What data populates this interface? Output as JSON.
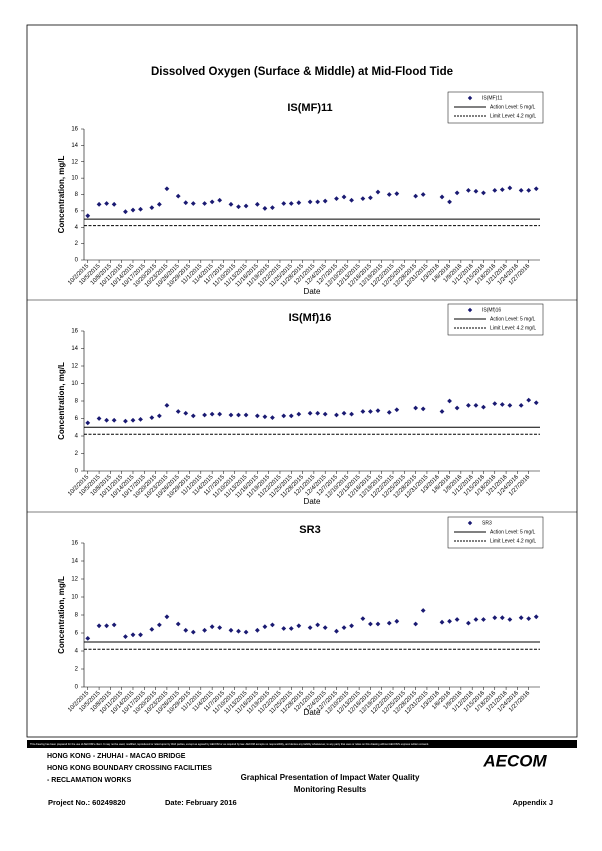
{
  "title": "Dissolved Oxygen (Surface & Middle) at Mid-Flood Tide",
  "chart_data": [
    {
      "type": "scatter",
      "title": "IS(MF)11",
      "xlabel": "Date",
      "ylabel": "Concentration, mg/L",
      "ylim": [
        0,
        16
      ],
      "yticks": [
        0,
        2,
        4,
        6,
        8,
        10,
        12,
        14,
        16
      ],
      "xlim": [
        "10/1/2015",
        "1/30/2016"
      ],
      "xticks": [
        "10/2/2015",
        "10/5/2015",
        "10/8/2015",
        "10/11/2015",
        "10/14/2015",
        "10/17/2015",
        "10/20/2015",
        "10/23/2015",
        "10/26/2015",
        "10/29/2015",
        "11/1/2015",
        "11/4/2015",
        "11/7/2015",
        "11/10/2015",
        "11/13/2015",
        "11/16/2015",
        "11/19/2015",
        "11/22/2015",
        "11/25/2015",
        "11/28/2015",
        "12/1/2015",
        "12/4/2015",
        "12/7/2015",
        "12/10/2015",
        "12/13/2015",
        "12/16/2015",
        "12/19/2015",
        "12/22/2015",
        "12/25/2015",
        "12/28/2015",
        "12/31/2015",
        "1/3/2016",
        "1/6/2016",
        "1/9/2016",
        "1/12/2016",
        "1/15/2016",
        "1/18/2016",
        "1/21/2016",
        "1/24/2016",
        "1/27/2016"
      ],
      "reference_lines": [
        {
          "name": "Action Level: 5 mg/L",
          "value": 5,
          "dashed": false,
          "color": "#000000"
        },
        {
          "name": "Limit Level: 4.2 mg/L",
          "value": 4.2,
          "dashed": true,
          "color": "#000000"
        }
      ],
      "series": [
        {
          "name": "IS(MF)11",
          "color": "#1a1a72",
          "x": [
            "10/2/2015",
            "10/5/2015",
            "10/7/2015",
            "10/9/2015",
            "10/12/2015",
            "10/14/2015",
            "10/16/2015",
            "10/19/2015",
            "10/21/2015",
            "10/23/2015",
            "10/26/2015",
            "10/28/2015",
            "10/30/2015",
            "11/2/2015",
            "11/4/2015",
            "11/6/2015",
            "11/9/2015",
            "11/11/2015",
            "11/13/2015",
            "11/16/2015",
            "11/18/2015",
            "11/20/2015",
            "11/23/2015",
            "11/25/2015",
            "11/27/2015",
            "11/30/2015",
            "12/2/2015",
            "12/4/2015",
            "12/7/2015",
            "12/9/2015",
            "12/11/2015",
            "12/14/2015",
            "12/16/2015",
            "12/18/2015",
            "12/21/2015",
            "12/23/2015",
            "12/28/2015",
            "12/30/2015",
            "1/4/2016",
            "1/6/2016",
            "1/8/2016",
            "1/11/2016",
            "1/13/2016",
            "1/15/2016",
            "1/18/2016",
            "1/20/2016",
            "1/22/2016",
            "1/25/2016",
            "1/27/2016",
            "1/29/2016"
          ],
          "values": [
            5.4,
            6.8,
            6.9,
            6.8,
            5.9,
            6.1,
            6.2,
            6.4,
            6.8,
            8.7,
            7.8,
            7.0,
            6.9,
            6.9,
            7.1,
            7.3,
            6.8,
            6.5,
            6.6,
            6.8,
            6.3,
            6.4,
            6.9,
            6.9,
            7.0,
            7.1,
            7.1,
            7.2,
            7.5,
            7.7,
            7.3,
            7.5,
            7.6,
            8.3,
            8.0,
            8.1,
            7.8,
            8.0,
            7.7,
            7.1,
            8.2,
            8.5,
            8.4,
            8.2,
            8.5,
            8.6,
            8.8,
            8.5,
            8.5,
            8.7
          ]
        }
      ]
    },
    {
      "type": "scatter",
      "title": "IS(Mf)16",
      "xlabel": "Date",
      "ylabel": "Concentration, mg/L",
      "ylim": [
        0,
        16
      ],
      "yticks": [
        0,
        2,
        4,
        6,
        8,
        10,
        12,
        14,
        16
      ],
      "xlim": [
        "10/1/2015",
        "1/30/2016"
      ],
      "xticks": [
        "10/2/2015",
        "10/5/2015",
        "10/8/2015",
        "10/11/2015",
        "10/14/2015",
        "10/17/2015",
        "10/20/2015",
        "10/23/2015",
        "10/26/2015",
        "10/29/2015",
        "11/1/2015",
        "11/4/2015",
        "11/7/2015",
        "11/10/2015",
        "11/13/2015",
        "11/16/2015",
        "11/19/2015",
        "11/22/2015",
        "11/25/2015",
        "11/28/2015",
        "12/1/2015",
        "12/4/2015",
        "12/7/2015",
        "12/10/2015",
        "12/13/2015",
        "12/16/2015",
        "12/19/2015",
        "12/22/2015",
        "12/25/2015",
        "12/28/2015",
        "12/31/2015",
        "1/3/2016",
        "1/6/2016",
        "1/9/2016",
        "1/12/2016",
        "1/15/2016",
        "1/18/2016",
        "1/21/2016",
        "1/24/2016",
        "1/27/2016"
      ],
      "reference_lines": [
        {
          "name": "Action Level: 5 mg/L",
          "value": 5,
          "dashed": false,
          "color": "#000000"
        },
        {
          "name": "Limit Level: 4.2 mg/L",
          "value": 4.2,
          "dashed": true,
          "color": "#000000"
        }
      ],
      "series": [
        {
          "name": "IS(Mf)16",
          "color": "#1a1a72",
          "x": [
            "10/2/2015",
            "10/5/2015",
            "10/7/2015",
            "10/9/2015",
            "10/12/2015",
            "10/14/2015",
            "10/16/2015",
            "10/19/2015",
            "10/21/2015",
            "10/23/2015",
            "10/26/2015",
            "10/28/2015",
            "10/30/2015",
            "11/2/2015",
            "11/4/2015",
            "11/6/2015",
            "11/9/2015",
            "11/11/2015",
            "11/13/2015",
            "11/16/2015",
            "11/18/2015",
            "11/20/2015",
            "11/23/2015",
            "11/25/2015",
            "11/27/2015",
            "11/30/2015",
            "12/2/2015",
            "12/4/2015",
            "12/7/2015",
            "12/9/2015",
            "12/11/2015",
            "12/14/2015",
            "12/16/2015",
            "12/18/2015",
            "12/21/2015",
            "12/23/2015",
            "12/28/2015",
            "12/30/2015",
            "1/4/2016",
            "1/6/2016",
            "1/8/2016",
            "1/11/2016",
            "1/13/2016",
            "1/15/2016",
            "1/18/2016",
            "1/20/2016",
            "1/22/2016",
            "1/25/2016",
            "1/27/2016",
            "1/29/2016"
          ],
          "values": [
            5.5,
            6.0,
            5.8,
            5.8,
            5.7,
            5.8,
            5.9,
            6.1,
            6.3,
            7.5,
            6.8,
            6.6,
            6.3,
            6.4,
            6.5,
            6.5,
            6.4,
            6.4,
            6.4,
            6.3,
            6.2,
            6.1,
            6.3,
            6.3,
            6.5,
            6.6,
            6.6,
            6.5,
            6.4,
            6.6,
            6.5,
            6.8,
            6.8,
            6.9,
            6.7,
            7.0,
            7.2,
            7.1,
            6.8,
            8.0,
            7.2,
            7.5,
            7.5,
            7.3,
            7.7,
            7.6,
            7.5,
            7.5,
            8.1,
            7.8
          ]
        }
      ]
    },
    {
      "type": "scatter",
      "title": "SR3",
      "xlabel": "Date",
      "ylabel": "Concentration, mg/L",
      "ylim": [
        0,
        16
      ],
      "yticks": [
        0,
        2,
        4,
        6,
        8,
        10,
        12,
        14,
        16
      ],
      "xlim": [
        "10/1/2015",
        "1/30/2016"
      ],
      "xticks": [
        "10/2/2015",
        "10/5/2015",
        "10/8/2015",
        "10/11/2015",
        "10/14/2015",
        "10/17/2015",
        "10/20/2015",
        "10/23/2015",
        "10/26/2015",
        "10/29/2015",
        "11/1/2015",
        "11/4/2015",
        "11/7/2015",
        "11/10/2015",
        "11/13/2015",
        "11/16/2015",
        "11/19/2015",
        "11/22/2015",
        "11/25/2015",
        "11/28/2015",
        "12/1/2015",
        "12/4/2015",
        "12/7/2015",
        "12/10/2015",
        "12/13/2015",
        "12/16/2015",
        "12/19/2015",
        "12/22/2015",
        "12/25/2015",
        "12/28/2015",
        "12/31/2015",
        "1/3/2016",
        "1/6/2016",
        "1/9/2016",
        "1/12/2016",
        "1/15/2016",
        "1/18/2016",
        "1/21/2016",
        "1/24/2016",
        "1/27/2016"
      ],
      "reference_lines": [
        {
          "name": "Action Level: 5 mg/L",
          "value": 5,
          "dashed": false,
          "color": "#000000"
        },
        {
          "name": "Limit Level: 4.2 mg/L",
          "value": 4.2,
          "dashed": true,
          "color": "#000000"
        }
      ],
      "series": [
        {
          "name": "SR3",
          "color": "#1a1a72",
          "x": [
            "10/2/2015",
            "10/5/2015",
            "10/7/2015",
            "10/9/2015",
            "10/12/2015",
            "10/14/2015",
            "10/16/2015",
            "10/19/2015",
            "10/21/2015",
            "10/23/2015",
            "10/26/2015",
            "10/28/2015",
            "10/30/2015",
            "11/2/2015",
            "11/4/2015",
            "11/6/2015",
            "11/9/2015",
            "11/11/2015",
            "11/13/2015",
            "11/16/2015",
            "11/18/2015",
            "11/20/2015",
            "11/23/2015",
            "11/25/2015",
            "11/27/2015",
            "11/30/2015",
            "12/2/2015",
            "12/4/2015",
            "12/7/2015",
            "12/9/2015",
            "12/11/2015",
            "12/14/2015",
            "12/16/2015",
            "12/18/2015",
            "12/21/2015",
            "12/23/2015",
            "12/28/2015",
            "12/30/2015",
            "1/4/2016",
            "1/6/2016",
            "1/8/2016",
            "1/11/2016",
            "1/13/2016",
            "1/15/2016",
            "1/18/2016",
            "1/20/2016",
            "1/22/2016",
            "1/25/2016",
            "1/27/2016",
            "1/29/2016"
          ],
          "values": [
            5.4,
            6.8,
            6.8,
            6.9,
            5.6,
            5.8,
            5.8,
            6.4,
            6.9,
            7.8,
            7.0,
            6.3,
            6.1,
            6.3,
            6.7,
            6.6,
            6.3,
            6.2,
            6.1,
            6.3,
            6.7,
            6.9,
            6.5,
            6.5,
            6.8,
            6.6,
            6.9,
            6.6,
            6.2,
            6.6,
            6.8,
            7.6,
            7.0,
            7.0,
            7.1,
            7.3,
            7.0,
            8.5,
            7.2,
            7.3,
            7.5,
            7.1,
            7.5,
            7.5,
            7.7,
            7.7,
            7.5,
            7.7,
            7.6,
            7.8
          ]
        }
      ]
    }
  ],
  "footer": {
    "disclaimer": "This drawing has been prepared for the use of AECOM's client. It may not be used, modified, reproduced or relied upon by third parties, except as agreed by AECOM or as required by law. AECOM accepts no responsibility, and denies any liability whatsoever, to any party that uses or relies on this drawing without AECOM's express written consent.",
    "project_lines": [
      "HONG KONG - ZHUHAI - MACAO BRIDGE",
      "HONG KONG BOUNDARY CROSSING FACILITIES",
      "- RECLAMATION WORKS"
    ],
    "drawing_title": [
      "Graphical Presentation of Impact Water Quality",
      "Monitoring Results"
    ],
    "logo": "AECOM",
    "project_no": "Project No.: 60249820",
    "date": "Date: February 2016",
    "appendix": "Appendix J"
  }
}
